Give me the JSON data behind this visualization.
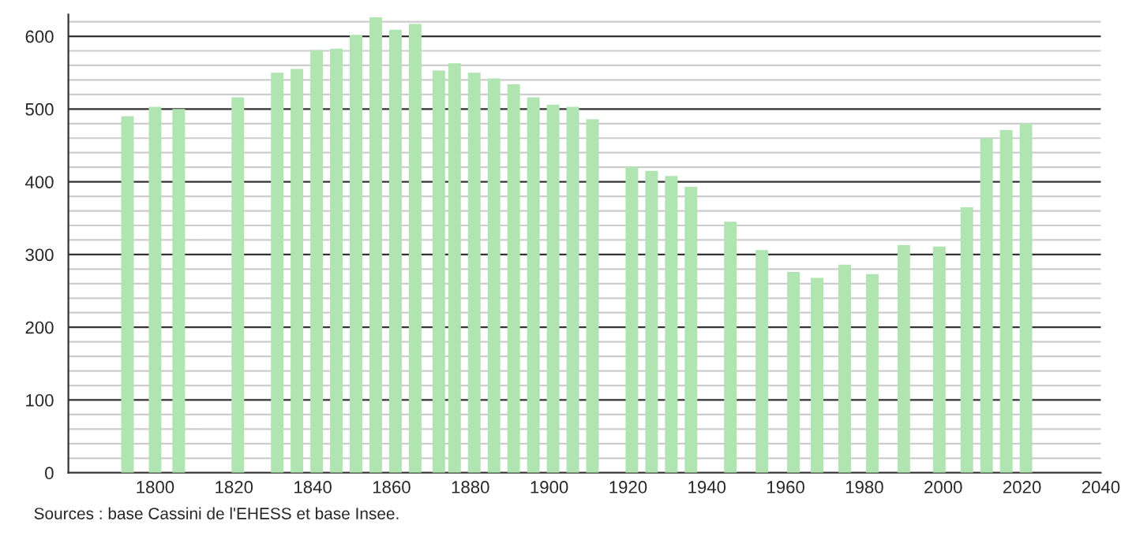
{
  "chart_data": {
    "type": "bar",
    "x": [
      1793,
      1800,
      1806,
      1821,
      1831,
      1836,
      1841,
      1846,
      1851,
      1856,
      1861,
      1866,
      1872,
      1876,
      1881,
      1886,
      1891,
      1896,
      1901,
      1906,
      1911,
      1921,
      1926,
      1931,
      1936,
      1946,
      1954,
      1962,
      1968,
      1975,
      1982,
      1990,
      1999,
      2006,
      2011,
      2016,
      2021
    ],
    "values": [
      490,
      503,
      500,
      516,
      550,
      555,
      581,
      583,
      602,
      626,
      609,
      617,
      553,
      563,
      550,
      542,
      534,
      516,
      506,
      503,
      486,
      421,
      415,
      408,
      393,
      345,
      306,
      276,
      268,
      286,
      273,
      313,
      311,
      365,
      460,
      471,
      480
    ],
    "color": "#b0e4b0",
    "xlim": [
      1778,
      2040
    ],
    "xticks": [
      1800,
      1820,
      1840,
      1860,
      1880,
      1900,
      1920,
      1940,
      1960,
      1980,
      2000,
      2020,
      2040
    ],
    "ylim": [
      0,
      630
    ],
    "yticks": [
      0,
      {
        "value": 20,
        "label": null
      },
      {
        "value": 40,
        "label": null
      },
      {
        "value": 60,
        "label": null
      },
      {
        "value": 80,
        "label": null
      },
      100,
      {
        "value": 120,
        "label": null
      },
      {
        "value": 140,
        "label": null
      },
      {
        "value": 160,
        "label": null
      },
      {
        "value": 180,
        "label": null
      },
      200,
      {
        "value": 220,
        "label": null
      },
      {
        "value": 240,
        "label": null
      },
      {
        "value": 260,
        "label": null
      },
      {
        "value": 280,
        "label": null
      },
      300,
      {
        "value": 320,
        "label": null
      },
      {
        "value": 340,
        "label": null
      },
      {
        "value": 360,
        "label": null
      },
      {
        "value": 380,
        "label": null
      },
      400,
      {
        "value": 420,
        "label": null
      },
      {
        "value": 440,
        "label": null
      },
      {
        "value": 460,
        "label": null
      },
      {
        "value": 480,
        "label": null
      },
      500,
      {
        "value": 520,
        "label": null
      },
      {
        "value": 540,
        "label": null
      },
      {
        "value": 560,
        "label": null
      },
      {
        "value": 580,
        "label": null
      },
      600,
      {
        "value": 620,
        "label": null
      }
    ],
    "grid": "y",
    "annotations": [
      "Sources : base Cassini de l'EHESS et base Insee."
    ]
  }
}
